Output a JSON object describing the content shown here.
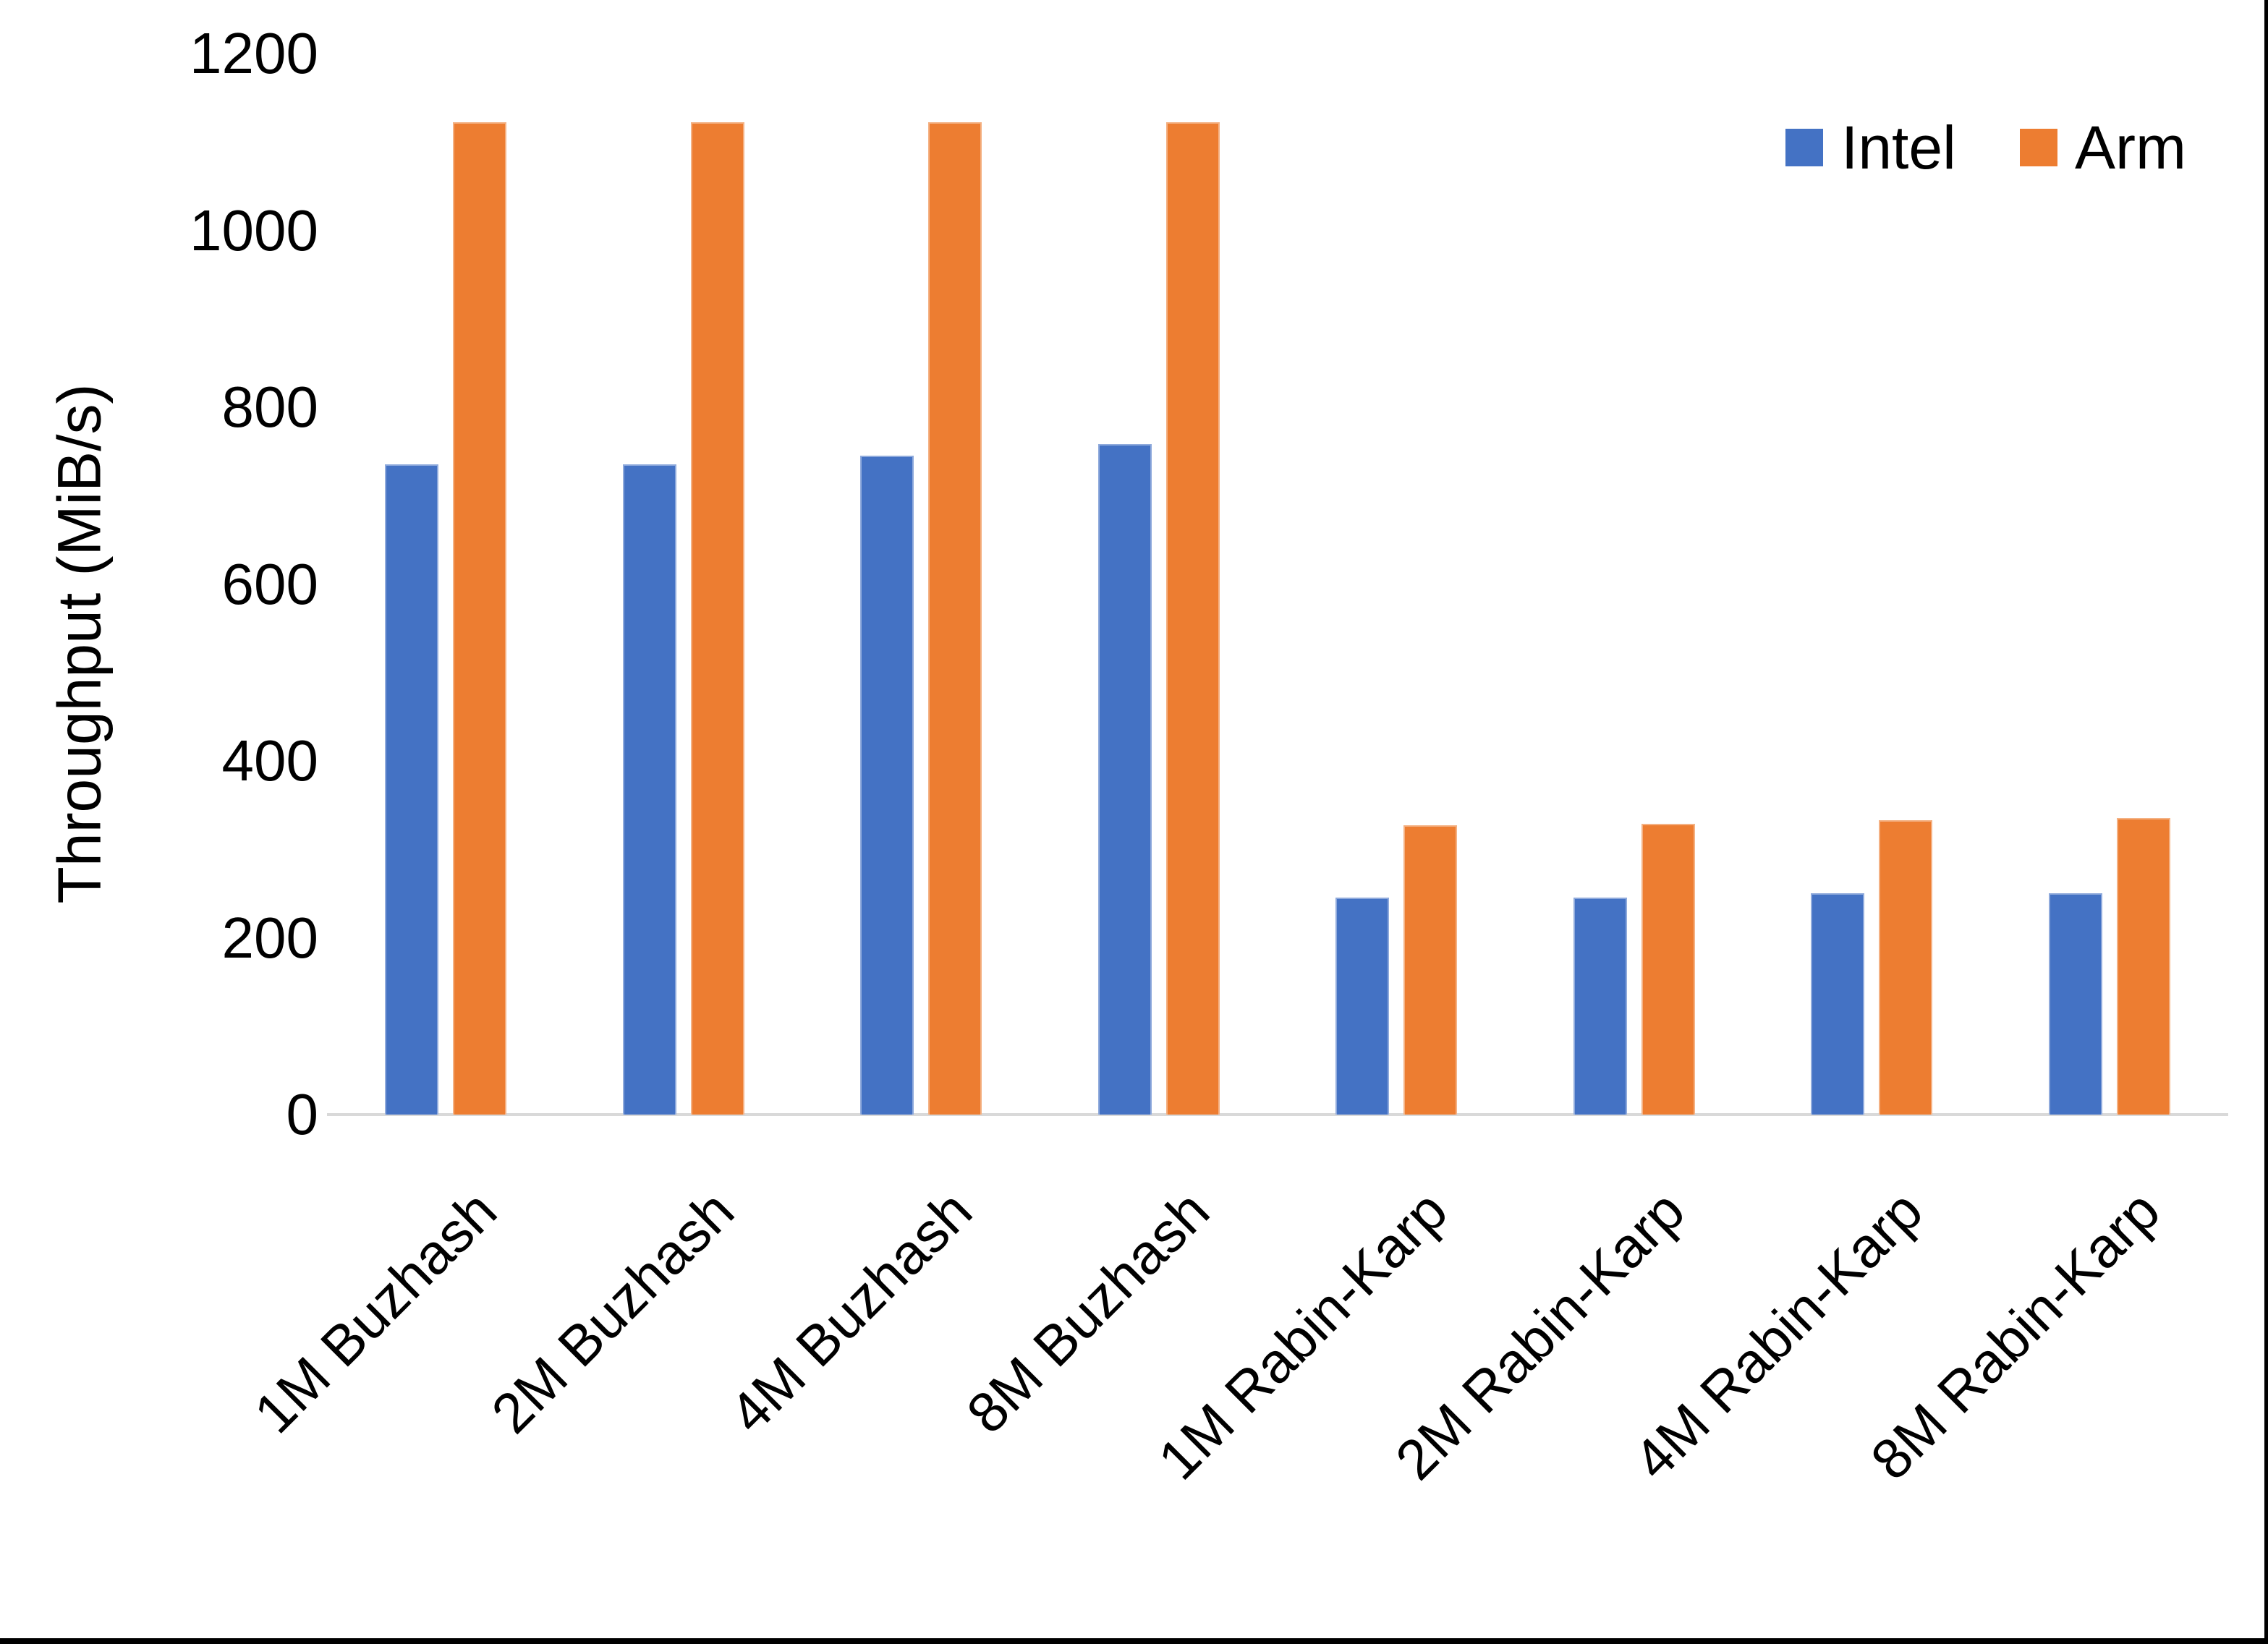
{
  "page": {
    "background_color": "#ffffff",
    "bottom_edge_color": "#000000",
    "right_edge_color": "#000000",
    "text_color": "#000000",
    "axis_line_color": "#d9d9d9"
  },
  "chart_data": {
    "type": "bar",
    "title": "",
    "xlabel": "",
    "ylabel": "Throughput (MiB/s)",
    "ylim": [
      0,
      1200
    ],
    "yticks": [
      0,
      200,
      400,
      600,
      800,
      1000,
      1200
    ],
    "grid": false,
    "legend_position": "top-right",
    "categories": [
      "1M Buzhash",
      "2M Buzhash",
      "4M Buzhash",
      "8M Buzhash",
      "1M Rabin-Karp",
      "2M Rabin-Karp",
      "4M Rabin-Karp",
      "8M Rabin-Karp"
    ],
    "series": [
      {
        "name": "Intel",
        "color": "#4472C4",
        "edge_color": "#8FAADC",
        "values": [
          735,
          735,
          745,
          758,
          245,
          245,
          250,
          250
        ]
      },
      {
        "name": "Arm",
        "color": "#ED7D31",
        "edge_color": "#F4B183",
        "values": [
          1122,
          1122,
          1122,
          1122,
          327,
          329,
          333,
          335
        ]
      }
    ]
  }
}
